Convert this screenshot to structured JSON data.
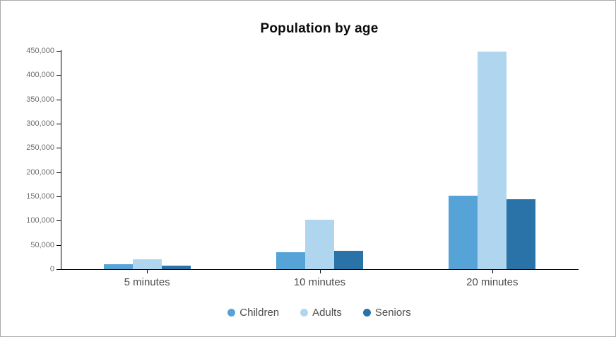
{
  "window": {
    "background": "#ffffff",
    "border_color": "#ababab"
  },
  "chart_data": {
    "type": "bar",
    "title": "Population by age",
    "categories": [
      "5 minutes",
      "10 minutes",
      "20 minutes"
    ],
    "series": [
      {
        "name": "Children",
        "color": "#56a3d8",
        "values": [
          10000,
          35000,
          152000
        ]
      },
      {
        "name": "Adults",
        "color": "#b0d6ef",
        "values": [
          21000,
          102000,
          449000
        ]
      },
      {
        "name": "Seniors",
        "color": "#2a73a9",
        "values": [
          7000,
          38000,
          144000
        ]
      }
    ],
    "xlabel": "",
    "ylabel": "",
    "ylim": [
      0,
      450000
    ],
    "ytick_step": 50000,
    "ytick_labels": [
      "0",
      "50,000",
      "100,000",
      "150,000",
      "200,000",
      "250,000",
      "300,000",
      "350,000",
      "400,000",
      "450,000"
    ],
    "grid": false,
    "legend_position": "bottom",
    "colors": {
      "axis": "#000000",
      "ytick_label": "#6e6e6e",
      "category_label": "#4c4c4c",
      "legend_label": "#4c4c4c",
      "title": "#0b0b0b"
    }
  }
}
